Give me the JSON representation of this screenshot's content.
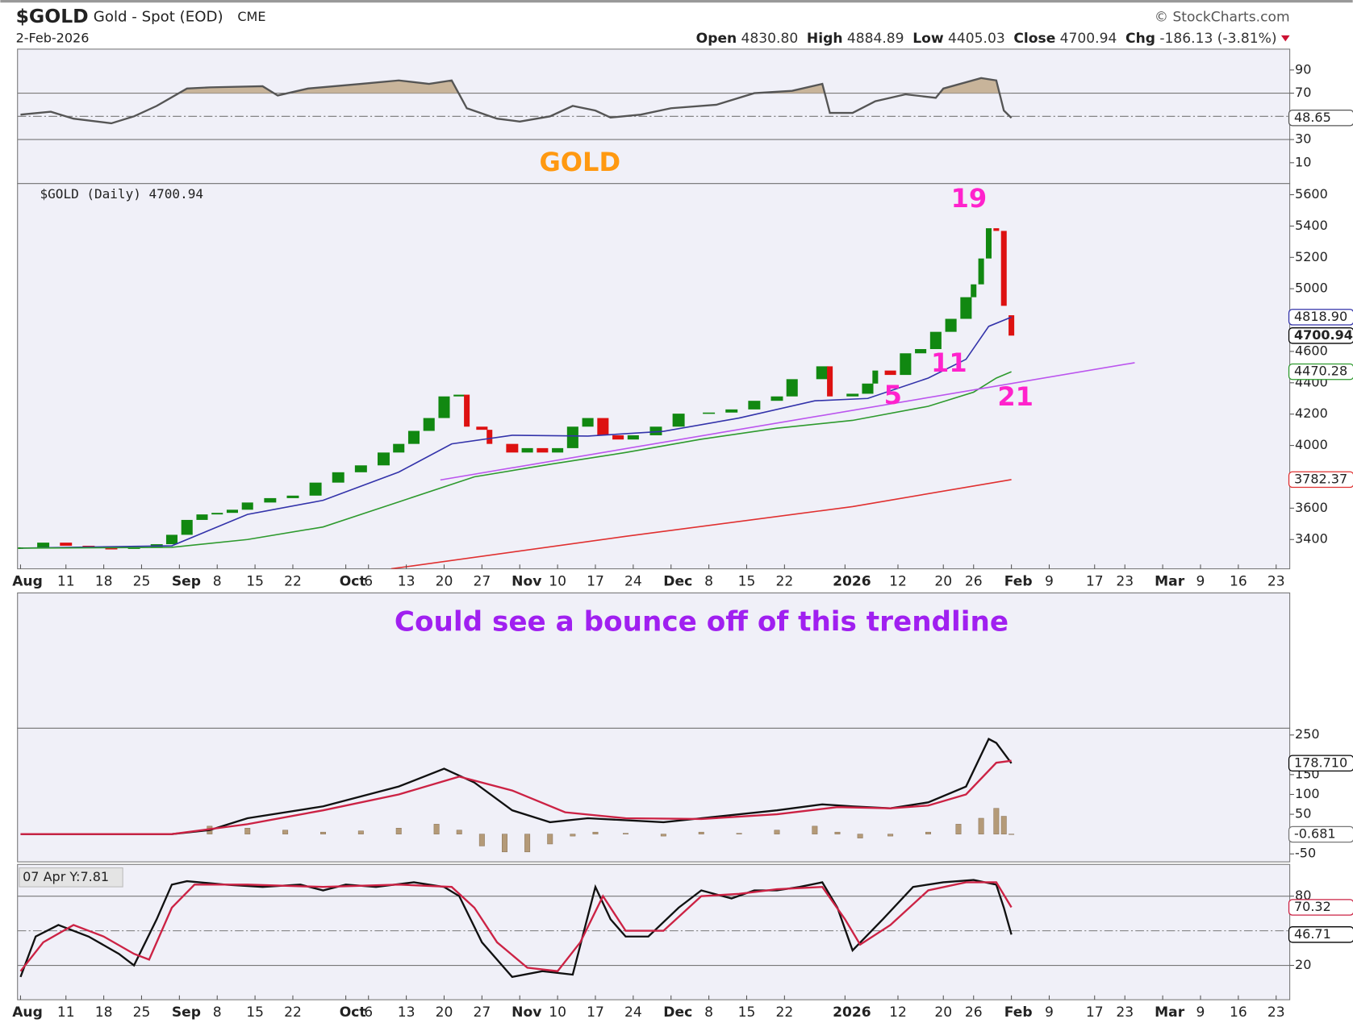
{
  "header": {
    "symbol": "$GOLD",
    "name": "Gold - Spot (EOD)",
    "exchange": "CME",
    "source": "© StockCharts.com",
    "date": "2-Feb-2026",
    "quote": [
      {
        "label": "Open",
        "value": "4830.80"
      },
      {
        "label": "High",
        "value": "4884.89"
      },
      {
        "label": "Low",
        "value": "4405.03"
      },
      {
        "label": "Close",
        "value": "4700.94"
      },
      {
        "label": "Chg",
        "value": "-186.13 (-3.81%)"
      }
    ]
  },
  "note": "Could see a bounce off of this trendline",
  "chart_data": [
    {
      "type": "line",
      "title": "GOLD",
      "xlim": [
        -0.4,
        167.8
      ],
      "ylim": [
        -8,
        108
      ],
      "yticks": [
        90,
        70,
        30,
        10
      ],
      "ref_lines": [
        {
          "value": 70,
          "style": "solid"
        },
        {
          "value": 30,
          "style": "solid"
        },
        {
          "value": 50,
          "style": "dashdot"
        }
      ],
      "fill_above": 70,
      "fill_color": "#c8b49a",
      "series": [
        {
          "color": "#555555",
          "x": [
            0,
            4,
            7,
            12,
            15,
            18,
            22,
            25,
            32,
            34,
            38,
            45,
            50,
            54,
            57,
            59,
            63,
            66,
            70,
            73,
            76,
            78,
            82,
            86,
            92,
            97,
            102,
            106,
            107,
            110,
            113,
            117,
            121,
            122,
            127,
            129,
            130,
            131
          ],
          "values": [
            51.5,
            54,
            48,
            44,
            50,
            59,
            74,
            75,
            76,
            68,
            74,
            78,
            81,
            78,
            81,
            57,
            48,
            45.5,
            50,
            59,
            55,
            49,
            51.5,
            57,
            60,
            70,
            72,
            78,
            53,
            53,
            63,
            69,
            66,
            74,
            83,
            81,
            55,
            48.65
          ]
        }
      ],
      "last_labels": [
        {
          "value": 48.65,
          "label": "48.65",
          "color": "#555555"
        }
      ]
    },
    {
      "type": "candlestick",
      "legend_text": "$GOLD (Daily) 4700.94",
      "xlim": [
        -0.4,
        167.8
      ],
      "ylim": [
        3213,
        5671
      ],
      "yticks": [
        5600,
        5400,
        5200,
        5000,
        4600,
        4400,
        4200,
        4000,
        3600,
        3400
      ],
      "xticks": [
        {
          "value": 0,
          "label": "Aug"
        },
        {
          "value": 6,
          "label": "11"
        },
        {
          "value": 11,
          "label": "18"
        },
        {
          "value": 16,
          "label": "25"
        },
        {
          "value": 21,
          "label": "Sep"
        },
        {
          "value": 26,
          "label": "8"
        },
        {
          "value": 31,
          "label": "15"
        },
        {
          "value": 36,
          "label": "22"
        },
        {
          "value": 43,
          "label": "Oct"
        },
        {
          "value": 46,
          "label": "6"
        },
        {
          "value": 51,
          "label": "13"
        },
        {
          "value": 56,
          "label": "20"
        },
        {
          "value": 61,
          "label": "27"
        },
        {
          "value": 66,
          "label": "Nov"
        },
        {
          "value": 71,
          "label": "10"
        },
        {
          "value": 76,
          "label": "17"
        },
        {
          "value": 81,
          "label": "24"
        },
        {
          "value": 86,
          "label": "Dec"
        },
        {
          "value": 91,
          "label": "8"
        },
        {
          "value": 96,
          "label": "15"
        },
        {
          "value": 101,
          "label": "22"
        },
        {
          "value": 109,
          "label": "2026"
        },
        {
          "value": 116,
          "label": "12"
        },
        {
          "value": 122,
          "label": "20"
        },
        {
          "value": 126,
          "label": "26"
        },
        {
          "value": 131,
          "label": "Feb"
        },
        {
          "value": 136,
          "label": "9"
        },
        {
          "value": 142,
          "label": "17"
        },
        {
          "value": 146,
          "label": "23"
        },
        {
          "value": 151,
          "label": "Mar"
        },
        {
          "value": 156,
          "label": "9"
        },
        {
          "value": 161,
          "label": "16"
        },
        {
          "value": 166,
          "label": "23"
        }
      ],
      "up_color": "#118811",
      "down_color": "#dd1111",
      "candles": {
        "x": [
          0,
          3,
          6,
          9,
          12,
          15,
          18,
          20,
          22,
          24,
          26,
          28,
          30,
          33,
          36,
          39,
          42,
          45,
          48,
          50,
          52,
          54,
          56,
          58,
          59,
          61,
          62,
          65,
          67,
          69,
          71,
          73,
          75,
          77,
          79,
          81,
          84,
          87,
          91,
          94,
          97,
          100,
          102,
          106,
          107,
          110,
          112,
          113,
          115,
          117,
          119,
          121,
          123,
          125,
          126,
          127,
          128,
          129,
          130,
          131
        ],
        "open": [
          3340,
          3350,
          3380,
          3360,
          3345,
          3340,
          3350,
          3370,
          3430,
          3525,
          3560,
          3570,
          3590,
          3636,
          3664,
          3680,
          3763,
          3829,
          3873,
          3955,
          4010,
          4093,
          4175,
          4313,
          4324,
          4120,
          4100,
          4010,
          3955,
          3983,
          3955,
          3983,
          4120,
          4175,
          4065,
          4038,
          4065,
          4120,
          4203,
          4210,
          4230,
          4285,
          4313,
          4423,
          4505,
          4313,
          4330,
          4395,
          4478,
          4450,
          4588,
          4615,
          4725,
          4808,
          4946,
          5028,
          5193,
          5386,
          5369,
          4830.8
        ],
        "close": [
          3350,
          3380,
          3360,
          3345,
          3340,
          3350,
          3370,
          3430,
          3525,
          3560,
          3570,
          3590,
          3636,
          3664,
          3680,
          3763,
          3829,
          3873,
          3955,
          4010,
          4093,
          4175,
          4313,
          4324,
          4120,
          4100,
          4010,
          3955,
          3983,
          3955,
          3983,
          4120,
          4175,
          4065,
          4038,
          4065,
          4120,
          4203,
          4210,
          4230,
          4285,
          4313,
          4423,
          4505,
          4313,
          4330,
          4395,
          4478,
          4450,
          4588,
          4615,
          4725,
          4808,
          4946,
          5028,
          5193,
          5386,
          5369,
          4891,
          4700.94
        ]
      },
      "series": [
        {
          "color": "#3333aa",
          "x": [
            0,
            20,
            30,
            40,
            50,
            57,
            65,
            75,
            85,
            95,
            105,
            112,
            120,
            125,
            128,
            131
          ],
          "values": [
            3345,
            3360,
            3560,
            3650,
            3830,
            4010,
            4065,
            4060,
            4090,
            4175,
            4285,
            4300,
            4430,
            4550,
            4760,
            4818.9
          ]
        },
        {
          "color": "#2e9a2e",
          "x": [
            0,
            20,
            30,
            40,
            50,
            60,
            70,
            80,
            90,
            100,
            110,
            120,
            126,
            129,
            131
          ],
          "values": [
            3345,
            3350,
            3400,
            3480,
            3640,
            3800,
            3880,
            3955,
            4040,
            4110,
            4160,
            4250,
            4340,
            4430,
            4470.28
          ]
        },
        {
          "color": "#e03030",
          "x": [
            49,
            80,
            110,
            131
          ],
          "values": [
            3213,
            3420,
            3610,
            3782.37
          ]
        },
        {
          "color": "#bb55ee",
          "x": [
            55.5,
            147.3
          ],
          "values": [
            3780,
            4528
          ]
        }
      ],
      "annotations": [
        "19",
        "11",
        "5",
        "21"
      ],
      "annotation_color": "#ff22cc",
      "last_labels": [
        {
          "value": 4818.9,
          "label": "4818.90",
          "color": "#3333aa"
        },
        {
          "value": 4700.94,
          "label": "4700.94",
          "color": "#000000",
          "bold": true
        },
        {
          "value": 4470.28,
          "label": "4470.28",
          "color": "#2e9a2e"
        },
        {
          "value": 3782.37,
          "label": "3782.37",
          "color": "#e03030"
        }
      ]
    },
    {
      "type": "line",
      "xlim": [
        -0.4,
        167.8
      ],
      "ylim": [
        -70,
        267
      ],
      "yticks": [
        250,
        150,
        100,
        50,
        -50
      ],
      "histogram": {
        "color": "#b49a78",
        "x": [
          25,
          30,
          35,
          40,
          45,
          50,
          55,
          58,
          61,
          64,
          67,
          70,
          73,
          76,
          80,
          85,
          90,
          95,
          100,
          105,
          108,
          111,
          115,
          120,
          124,
          127,
          129,
          130,
          131
        ],
        "values": [
          20,
          15,
          10,
          5,
          8,
          15,
          25,
          10,
          -30,
          -45,
          -45,
          -25,
          -5,
          5,
          2,
          -5,
          5,
          2,
          10,
          20,
          5,
          -10,
          -5,
          5,
          25,
          40,
          65,
          45,
          -0.681
        ]
      },
      "series": [
        {
          "color": "#111111",
          "x": [
            0,
            20,
            25,
            30,
            40,
            50,
            56,
            60,
            65,
            70,
            75,
            85,
            90,
            100,
            106,
            110,
            115,
            120,
            125,
            128,
            129,
            131
          ],
          "values": [
            0,
            0,
            10,
            40,
            70,
            120,
            165,
            130,
            60,
            30,
            40,
            30,
            40,
            60,
            75,
            70,
            65,
            80,
            120,
            240,
            230,
            178.71
          ]
        },
        {
          "color": "#cc2244",
          "x": [
            0,
            20,
            30,
            40,
            50,
            58,
            65,
            72,
            80,
            90,
            100,
            108,
            115,
            120,
            125,
            129,
            131
          ],
          "values": [
            0,
            0,
            25,
            60,
            100,
            145,
            110,
            55,
            40,
            38,
            50,
            68,
            65,
            72,
            100,
            180,
            185
          ]
        }
      ],
      "last_labels": [
        {
          "value": 178.71,
          "label": "178.710",
          "color": "#000000"
        },
        {
          "value": -0.681,
          "label": "-0.681",
          "color": "#777777"
        }
      ]
    },
    {
      "type": "line",
      "annotation": "07 Apr Y:7.81",
      "xlim": [
        -0.4,
        167.8
      ],
      "ylim": [
        -9.75,
        107.5
      ],
      "yticks": [
        80,
        20
      ],
      "ref_lines": [
        {
          "value": 80,
          "style": "solid"
        },
        {
          "value": 20,
          "style": "solid"
        },
        {
          "value": 50,
          "style": "dashdot"
        }
      ],
      "xticks": [
        {
          "value": 0,
          "label": "Aug"
        },
        {
          "value": 6,
          "label": "11"
        },
        {
          "value": 11,
          "label": "18"
        },
        {
          "value": 16,
          "label": "25"
        },
        {
          "value": 21,
          "label": "Sep"
        },
        {
          "value": 26,
          "label": "8"
        },
        {
          "value": 31,
          "label": "15"
        },
        {
          "value": 36,
          "label": "22"
        },
        {
          "value": 43,
          "label": "Oct"
        },
        {
          "value": 46,
          "label": "6"
        },
        {
          "value": 51,
          "label": "13"
        },
        {
          "value": 56,
          "label": "20"
        },
        {
          "value": 61,
          "label": "27"
        },
        {
          "value": 66,
          "label": "Nov"
        },
        {
          "value": 71,
          "label": "10"
        },
        {
          "value": 76,
          "label": "17"
        },
        {
          "value": 81,
          "label": "24"
        },
        {
          "value": 86,
          "label": "Dec"
        },
        {
          "value": 91,
          "label": "8"
        },
        {
          "value": 96,
          "label": "15"
        },
        {
          "value": 101,
          "label": "22"
        },
        {
          "value": 109,
          "label": "2026"
        },
        {
          "value": 116,
          "label": "12"
        },
        {
          "value": 122,
          "label": "20"
        },
        {
          "value": 126,
          "label": "26"
        },
        {
          "value": 131,
          "label": "Feb"
        },
        {
          "value": 136,
          "label": "9"
        },
        {
          "value": 142,
          "label": "17"
        },
        {
          "value": 146,
          "label": "23"
        },
        {
          "value": 151,
          "label": "Mar"
        },
        {
          "value": 156,
          "label": "9"
        },
        {
          "value": 161,
          "label": "16"
        },
        {
          "value": 166,
          "label": "23"
        }
      ],
      "series": [
        {
          "color": "#111111",
          "x": [
            0,
            2,
            5,
            9,
            13,
            15,
            18,
            20,
            22,
            27,
            32,
            37,
            40,
            43,
            47,
            52,
            56,
            58,
            61,
            65,
            69,
            73,
            76,
            78,
            80,
            83,
            87,
            90,
            94,
            97,
            100,
            103,
            106,
            108,
            110,
            114,
            118,
            122,
            126,
            129,
            130,
            131
          ],
          "values": [
            10,
            45,
            55,
            45,
            30,
            20,
            60,
            90,
            93,
            90,
            88,
            90,
            85,
            90,
            88,
            92,
            88,
            80,
            40,
            10,
            15,
            12,
            88,
            60,
            45,
            45,
            70,
            85,
            78,
            85,
            85,
            88,
            92,
            70,
            33,
            60,
            88,
            92,
            94,
            90,
            70,
            46.71
          ]
        },
        {
          "color": "#cc2244",
          "x": [
            0,
            3,
            7,
            11,
            15,
            17,
            20,
            23,
            30,
            40,
            50,
            57,
            60,
            63,
            67,
            71,
            74,
            77,
            80,
            85,
            90,
            95,
            100,
            106,
            109,
            111,
            115,
            120,
            125,
            129,
            131
          ],
          "values": [
            15,
            40,
            55,
            45,
            30,
            25,
            70,
            90,
            90,
            88,
            90,
            88,
            70,
            40,
            18,
            15,
            40,
            80,
            50,
            50,
            80,
            82,
            86,
            88,
            60,
            38,
            55,
            85,
            92,
            92,
            70.32
          ]
        }
      ],
      "last_labels": [
        {
          "value": 70.32,
          "label": "70.32",
          "color": "#cc2244"
        },
        {
          "value": 46.71,
          "label": "46.71",
          "color": "#000000"
        }
      ]
    }
  ]
}
